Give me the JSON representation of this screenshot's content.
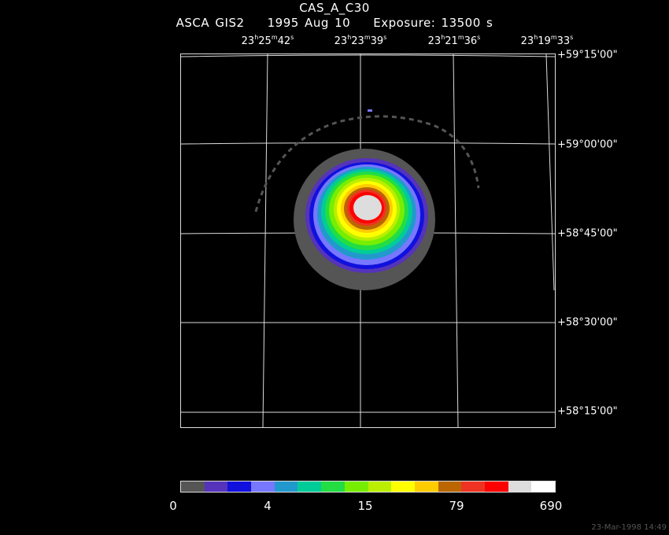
{
  "title": {
    "object": "CAS_A_C30",
    "instrument": "ASCA GIS2",
    "date": "1995 Aug 10",
    "exposure": "Exposure: 13500 s"
  },
  "ra_ticks": [
    {
      "h": "23",
      "m": "25",
      "s": "42"
    },
    {
      "h": "23",
      "m": "23",
      "s": "39"
    },
    {
      "h": "23",
      "m": "21",
      "s": "36"
    },
    {
      "h": "23",
      "m": "19",
      "s": "33"
    }
  ],
  "dec_ticks": [
    "+59°15'00\"",
    "+59°00'00\"",
    "+58°45'00\"",
    "+58°30'00\"",
    "+58°15'00\""
  ],
  "colorbar": {
    "colors": [
      "#555555",
      "#5533bb",
      "#1111dd",
      "#7777ff",
      "#2299cc",
      "#00cc99",
      "#22dd44",
      "#77ee00",
      "#bbee00",
      "#ffff00",
      "#ffcc00",
      "#bb6600",
      "#ee3322",
      "#ff0000",
      "#dddddd",
      "#ffffff"
    ],
    "tick_labels": [
      "0",
      "4",
      "15",
      "79",
      "690"
    ]
  },
  "timestamp": "23-Mar-1998 14:49"
}
